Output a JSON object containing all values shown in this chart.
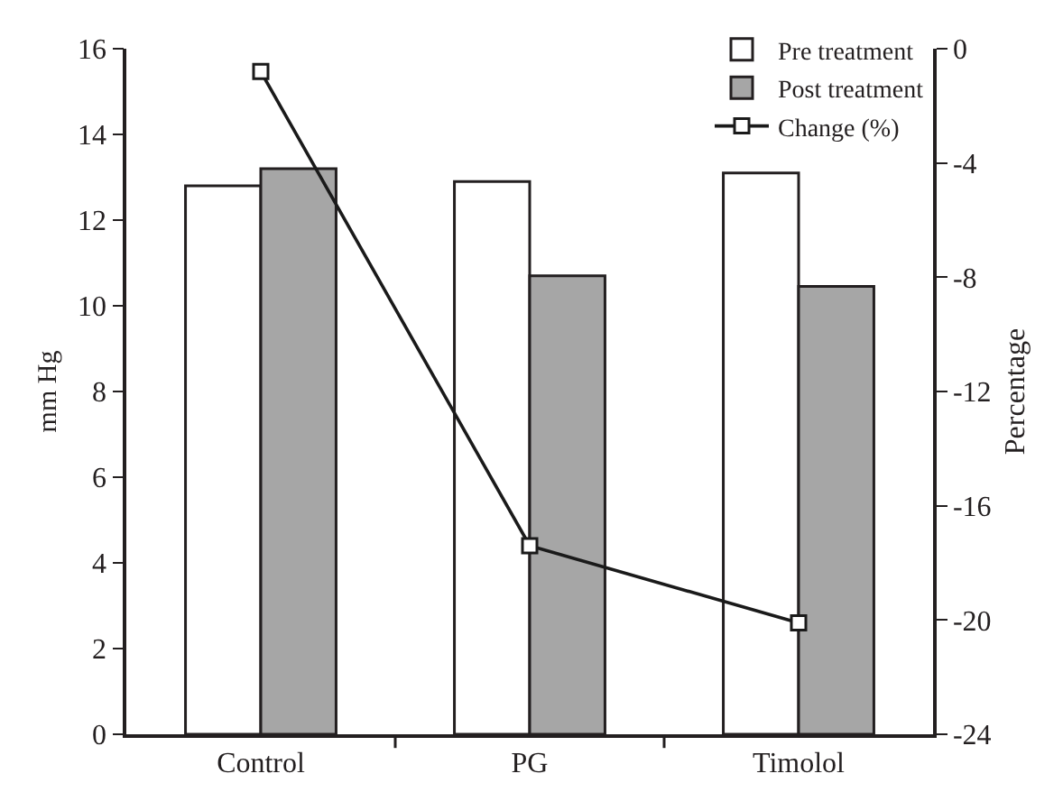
{
  "chart_data": {
    "type": "bar",
    "categories": [
      "Control",
      "PG",
      "Timolol"
    ],
    "ylabel": "mm Hg",
    "y2label": "Percentage",
    "ylim": [
      0,
      16
    ],
    "yticks": [
      0,
      2,
      4,
      6,
      8,
      10,
      12,
      14,
      16
    ],
    "y2lim": [
      -24,
      0
    ],
    "y2ticks": [
      -24,
      -20,
      -16,
      -12,
      -8,
      -4,
      0
    ],
    "grid": false,
    "legend": "top right",
    "series": [
      {
        "name": "Pre treatment",
        "color": "#ffffff",
        "values": [
          12.8,
          12.9,
          13.1
        ]
      },
      {
        "name": "Post treatment",
        "color": "#a6a6a6",
        "values": [
          13.2,
          10.7,
          10.45
        ]
      },
      {
        "name": "Change (%)",
        "type": "line",
        "axis": "y2",
        "color": "#1a1a1a",
        "marker": "square",
        "values": [
          -0.8,
          -17.4,
          -20.1
        ]
      }
    ]
  }
}
